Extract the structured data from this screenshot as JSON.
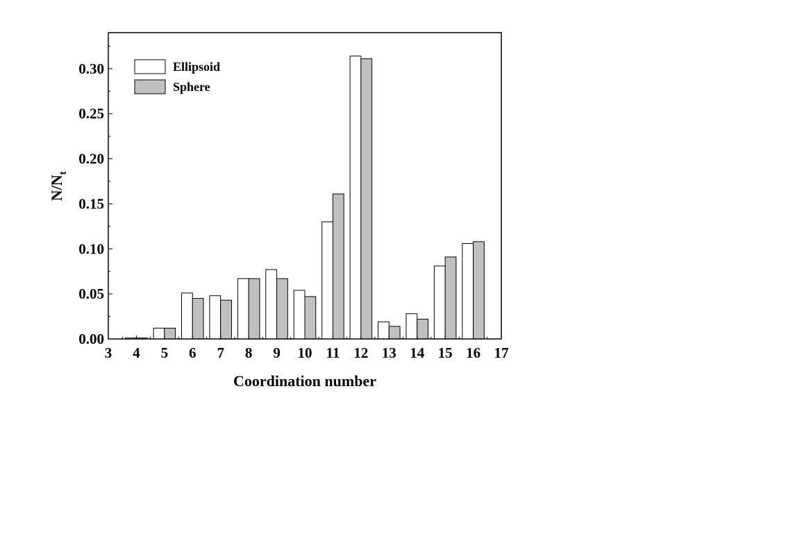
{
  "chart_data": {
    "type": "bar",
    "xlabel": "Coordination number",
    "ylabel_main": "N/N",
    "ylabel_sub": "t",
    "xlim": [
      3,
      17
    ],
    "ylim": [
      0,
      0.34
    ],
    "x_ticks": [
      "3",
      "4",
      "5",
      "6",
      "7",
      "8",
      "9",
      "10",
      "11",
      "12",
      "13",
      "14",
      "15",
      "16",
      "17"
    ],
    "y_ticks": [
      "0.00",
      "0.05",
      "0.10",
      "0.15",
      "0.20",
      "0.25",
      "0.30"
    ],
    "categories": [
      4,
      5,
      6,
      7,
      8,
      9,
      10,
      11,
      12,
      13,
      14,
      15,
      16
    ],
    "series": [
      {
        "name": "Ellipsoid",
        "color": "#ffffff",
        "values": [
          0.001,
          0.012,
          0.051,
          0.048,
          0.067,
          0.077,
          0.054,
          0.13,
          0.314,
          0.019,
          0.028,
          0.081,
          0.106
        ]
      },
      {
        "name": "Sphere",
        "color": "#c0c0c0",
        "values": [
          0.001,
          0.012,
          0.045,
          0.043,
          0.067,
          0.067,
          0.047,
          0.161,
          0.311,
          0.014,
          0.022,
          0.091,
          0.108
        ]
      }
    ],
    "legend": "top-left",
    "grid": false
  }
}
